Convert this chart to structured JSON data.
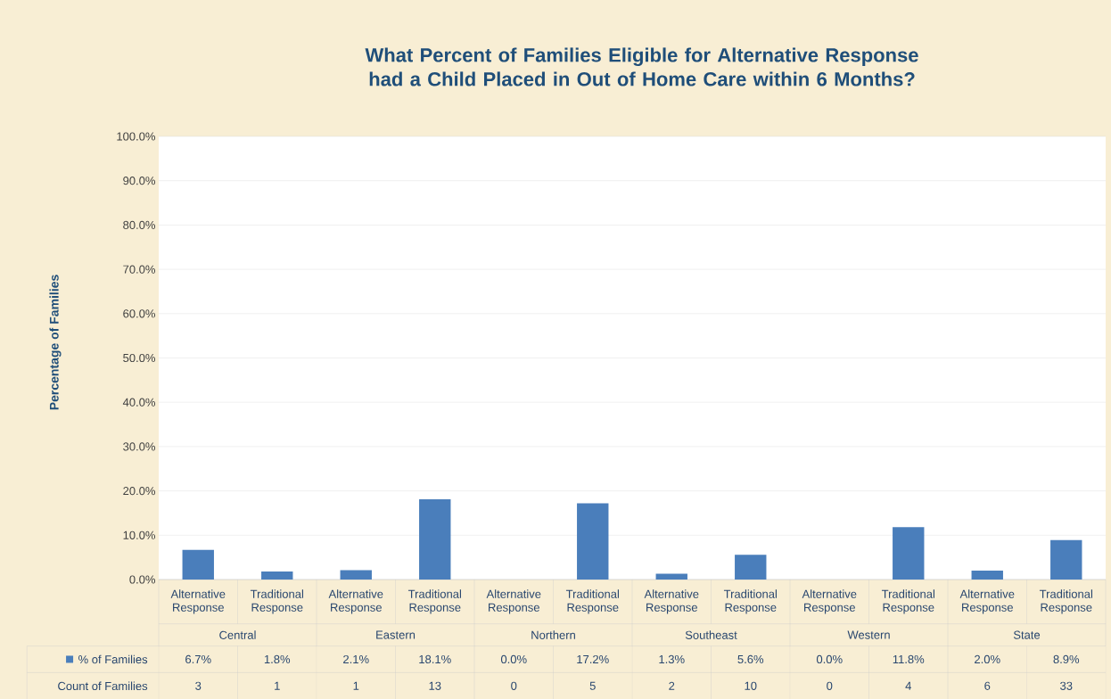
{
  "chart_data": {
    "type": "bar",
    "title": "What Percent of Families Eligible for Alternative Response had a Child Placed in Out of Home Care within 6 Months?",
    "ylabel": "Percentage of Families",
    "categories": [
      "Alternative Response",
      "Traditional Response",
      "Alternative Response",
      "Traditional Response",
      "Alternative Response",
      "Traditional Response",
      "Alternative Response",
      "Traditional Response",
      "Alternative Response",
      "Traditional Response",
      "Alternative Response",
      "Traditional Response"
    ],
    "series": [
      {
        "name": "% of Families",
        "color": "#4a7ebb",
        "values": [
          6.7,
          1.8,
          2.1,
          18.1,
          0.0,
          17.2,
          1.3,
          5.6,
          0.0,
          11.8,
          2.0,
          8.9
        ],
        "value_labels": [
          "6.7%",
          "1.8%",
          "2.1%",
          "18.1%",
          "0.0%",
          "17.2%",
          "1.3%",
          "5.6%",
          "0.0%",
          "11.8%",
          "2.0%",
          "8.9%"
        ]
      }
    ],
    "ylim": [
      0,
      100
    ],
    "yticks": [
      {
        "value": 0,
        "label": "0.0%"
      },
      {
        "value": 10,
        "label": "10.0%"
      },
      {
        "value": 20,
        "label": "20.0%"
      },
      {
        "value": 30,
        "label": "30.0%"
      },
      {
        "value": 40,
        "label": "40.0%"
      },
      {
        "value": 50,
        "label": "50.0%"
      },
      {
        "value": 60,
        "label": "60.0%"
      },
      {
        "value": 70,
        "label": "70.0%"
      },
      {
        "value": 80,
        "label": "80.0%"
      },
      {
        "value": 90,
        "label": "90.0%"
      },
      {
        "value": 100,
        "label": "100.0%"
      }
    ],
    "grid": "y",
    "annotations": [
      "Central",
      "Eastern",
      "Northern",
      "Southeast",
      "Western",
      "State",
      "Count of Families",
      "3",
      "1",
      "1",
      "13",
      "0",
      "5",
      "2",
      "10",
      "0",
      "4",
      "6",
      "33"
    ]
  }
}
